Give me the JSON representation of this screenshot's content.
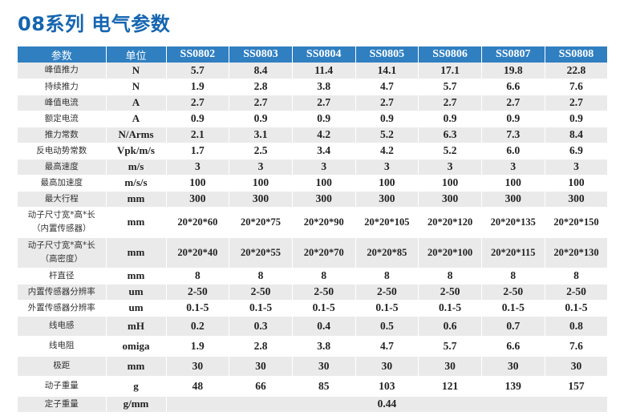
{
  "title": "08系列 电气参数",
  "colors": {
    "title": "#1565b0",
    "header_bg": "#2f7fc1",
    "header_text": "#ffffff",
    "row_alt": "#eaeaea"
  },
  "header": {
    "param": "参数",
    "unit": "单位",
    "models": [
      "SS0802",
      "SS0803",
      "SS0804",
      "SS0805",
      "SS0806",
      "SS0807",
      "SS0808"
    ]
  },
  "rows": [
    {
      "param": "峰值推力",
      "unit": "N",
      "values": [
        "5.7",
        "8.4",
        "11.4",
        "14.1",
        "17.1",
        "19.8",
        "22.8"
      ]
    },
    {
      "param": "持续推力",
      "unit": "N",
      "values": [
        "1.9",
        "2.8",
        "3.8",
        "4.7",
        "5.7",
        "6.6",
        "7.6"
      ]
    },
    {
      "param": "峰值电流",
      "unit": "A",
      "values": [
        "2.7",
        "2.7",
        "2.7",
        "2.7",
        "2.7",
        "2.7",
        "2.7"
      ]
    },
    {
      "param": "额定电流",
      "unit": "A",
      "values": [
        "0.9",
        "0.9",
        "0.9",
        "0.9",
        "0.9",
        "0.9",
        "0.9"
      ]
    },
    {
      "param": "推力常数",
      "unit": "N/Arms",
      "values": [
        "2.1",
        "3.1",
        "4.2",
        "5.2",
        "6.3",
        "7.3",
        "8.4"
      ]
    },
    {
      "param": "反电动势常数",
      "unit": "Vpk/m/s",
      "values": [
        "1.7",
        "2.5",
        "3.4",
        "4.2",
        "5.2",
        "6.0",
        "6.9"
      ]
    },
    {
      "param": "最高速度",
      "unit": "m/s",
      "values": [
        "3",
        "3",
        "3",
        "3",
        "3",
        "3",
        "3"
      ]
    },
    {
      "param": "最高加速度",
      "unit": "m/s/s",
      "values": [
        "100",
        "100",
        "100",
        "100",
        "100",
        "100",
        "100"
      ]
    },
    {
      "param": "最大行程",
      "unit": "mm",
      "values": [
        "300",
        "300",
        "300",
        "300",
        "300",
        "300",
        "300"
      ]
    },
    {
      "param_lines": [
        "动子尺寸宽*高*长",
        "（内置传感器）"
      ],
      "unit": "mm",
      "values": [
        "20*20*60",
        "20*20*75",
        "20*20*90",
        "20*20*105",
        "20*20*120",
        "20*20*135",
        "20*20*150"
      ]
    },
    {
      "param_lines": [
        "动子尺寸宽*高*长",
        "（高密度）"
      ],
      "unit": "mm",
      "values": [
        "20*20*40",
        "20*20*55",
        "20*20*70",
        "20*20*85",
        "20*20*100",
        "20*20*115",
        "20*20*130"
      ]
    },
    {
      "param": "杆直径",
      "unit": "mm",
      "values": [
        "8",
        "8",
        "8",
        "8",
        "8",
        "8",
        "8"
      ]
    },
    {
      "param": "内置传感器分辨率",
      "unit": "um",
      "values": [
        "2-50",
        "2-50",
        "2-50",
        "2-50",
        "2-50",
        "2-50",
        "2-50"
      ]
    },
    {
      "param": "外置传感器分辨率",
      "unit": "um",
      "values": [
        "0.1-5",
        "0.1-5",
        "0.1-5",
        "0.1-5",
        "0.1-5",
        "0.1-5",
        "0.1-5"
      ]
    },
    {
      "param": "线电感",
      "unit": "mH",
      "values": [
        "0.2",
        "0.3",
        "0.4",
        "0.5",
        "0.6",
        "0.7",
        "0.8"
      ]
    },
    {
      "param": "线电阻",
      "unit": "omiga",
      "values": [
        "1.9",
        "2.8",
        "3.8",
        "4.7",
        "5.7",
        "6.6",
        "7.6"
      ]
    },
    {
      "param": "极距",
      "unit": "mm",
      "values": [
        "30",
        "30",
        "30",
        "30",
        "30",
        "30",
        "30"
      ]
    },
    {
      "param": "动子重量",
      "unit": "g",
      "values": [
        "48",
        "66",
        "85",
        "103",
        "121",
        "139",
        "157"
      ]
    },
    {
      "param": "定子重量",
      "unit": "g/mm",
      "merged_value": "0.44"
    }
  ]
}
